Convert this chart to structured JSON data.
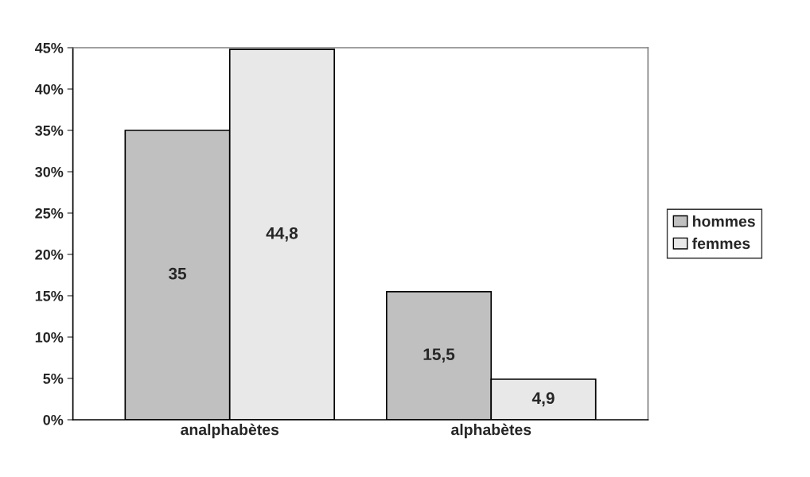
{
  "chart_data": {
    "type": "bar",
    "categories": [
      "analphabètes",
      "alphabètes"
    ],
    "series": [
      {
        "name": "hommes",
        "color": "#c0c0c0",
        "values": [
          35,
          15.5
        ],
        "value_labels": [
          "35",
          "15,5"
        ]
      },
      {
        "name": "femmes",
        "color": "#e8e8e8",
        "values": [
          44.8,
          4.9
        ],
        "value_labels": [
          "44,8",
          "4,9"
        ]
      }
    ],
    "ylim": [
      0,
      45
    ],
    "yticks": [
      {
        "value": 0,
        "label": "0%"
      },
      {
        "value": 5,
        "label": "5%"
      },
      {
        "value": 10,
        "label": "10%"
      },
      {
        "value": 15,
        "label": "15%"
      },
      {
        "value": 20,
        "label": "20%"
      },
      {
        "value": 25,
        "label": "25%"
      },
      {
        "value": 30,
        "label": "30%"
      },
      {
        "value": 35,
        "label": "35%"
      },
      {
        "value": 40,
        "label": "40%"
      },
      {
        "value": 45,
        "label": "45%"
      }
    ],
    "grid": false,
    "legend": "right"
  }
}
